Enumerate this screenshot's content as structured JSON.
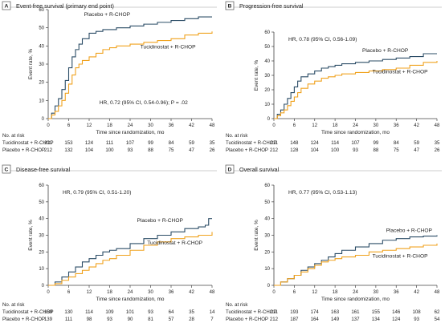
{
  "colors": {
    "placebo": "#2b4c66",
    "tucidinostat": "#f0a21e",
    "frame": "#999999",
    "axis": "#444444"
  },
  "chart_data": [
    {
      "panel": "A",
      "title": "Event-free survival (primary end point)",
      "type": "line",
      "xlabel": "Time since randomization, mo",
      "ylabel": "Event rate, %",
      "xlim": [
        0,
        48
      ],
      "ylim": [
        0,
        60
      ],
      "xticks": [
        0,
        6,
        12,
        18,
        24,
        30,
        36,
        42,
        48
      ],
      "yticks": [
        0,
        10,
        20,
        30,
        40,
        50,
        60
      ],
      "grid": false,
      "hr_text": "HR, 0.72 (95% CI, 0.54-0.96); P = .02",
      "series": [
        {
          "name": "Placebo + R-CHOP",
          "x": [
            0,
            1,
            2,
            3,
            4,
            5,
            6,
            7,
            8,
            9,
            10,
            12,
            14,
            16,
            18,
            20,
            24,
            28,
            32,
            36,
            40,
            44,
            48
          ],
          "y": [
            0,
            3,
            7,
            11,
            16,
            21,
            28,
            34,
            38,
            41,
            44,
            47,
            48,
            49,
            49,
            50,
            51,
            52,
            53,
            54,
            55,
            56,
            56
          ]
        },
        {
          "name": "Tucidinostat + R-CHOP",
          "x": [
            0,
            1,
            2,
            3,
            4,
            5,
            6,
            7,
            8,
            9,
            10,
            12,
            14,
            16,
            18,
            20,
            24,
            28,
            32,
            36,
            40,
            44,
            48
          ],
          "y": [
            0,
            2,
            4,
            7,
            10,
            14,
            19,
            24,
            28,
            30,
            32,
            34,
            36,
            38,
            39,
            40,
            41,
            42,
            43,
            44,
            46,
            47,
            48
          ]
        }
      ],
      "risk_header": "No. at risk",
      "risk_rows": [
        {
          "label": "Tucidinostat + R-CHOP",
          "values": [
            211,
            153,
            124,
            111,
            107,
            99,
            84,
            59,
            35
          ]
        },
        {
          "label": "Placebo + R-CHOP",
          "values": [
            212,
            132,
            104,
            100,
            93,
            88,
            75,
            47,
            26
          ]
        }
      ],
      "curve_labels": [
        {
          "series": 0,
          "text": "Placebo + R-CHOP",
          "x": 10.5,
          "y": 56.5
        },
        {
          "series": 1,
          "text": "Tucidinostat + R-CHOP",
          "x": 27,
          "y": 38.5
        }
      ]
    },
    {
      "panel": "B",
      "title": "Progression-free survival",
      "type": "line",
      "xlabel": "Time since randomization, mo",
      "ylabel": "Event rate, %",
      "xlim": [
        0,
        48
      ],
      "ylim": [
        0,
        60
      ],
      "xticks": [
        0,
        6,
        12,
        18,
        24,
        30,
        36,
        42,
        48
      ],
      "yticks": [
        0,
        10,
        20,
        30,
        40,
        50,
        60
      ],
      "grid": false,
      "hr_text": "HR, 0.78 (95% CI, 0.56-1.09)",
      "series": [
        {
          "name": "Placebo + R-CHOP",
          "x": [
            0,
            1,
            2,
            3,
            4,
            5,
            6,
            7,
            8,
            10,
            12,
            14,
            16,
            18,
            20,
            24,
            28,
            32,
            36,
            40,
            44,
            48
          ],
          "y": [
            0,
            3,
            6,
            10,
            14,
            18,
            22,
            26,
            29,
            31,
            33,
            35,
            36,
            37,
            38,
            39,
            40,
            41,
            42,
            43,
            45,
            45
          ]
        },
        {
          "name": "Tucidinostat + R-CHOP",
          "x": [
            0,
            1,
            2,
            3,
            4,
            5,
            6,
            7,
            8,
            10,
            12,
            14,
            16,
            18,
            20,
            24,
            28,
            32,
            36,
            40,
            44,
            48
          ],
          "y": [
            0,
            2,
            4,
            6,
            9,
            12,
            15,
            18,
            21,
            24,
            26,
            28,
            29,
            30,
            31,
            32,
            33,
            34,
            35,
            37,
            39,
            40
          ]
        }
      ],
      "risk_header": "No. at risk",
      "risk_rows": [
        {
          "label": "Tucidinostat + R-CHOP",
          "values": [
            211,
            148,
            124,
            114,
            107,
            99,
            84,
            59,
            35
          ]
        },
        {
          "label": "Placebo + R-CHOP",
          "values": [
            212,
            128,
            104,
            100,
            93,
            88,
            75,
            47,
            26
          ]
        }
      ],
      "curve_labels": [
        {
          "series": 0,
          "text": "Placebo + R-CHOP",
          "x": 26,
          "y": 46
        },
        {
          "series": 1,
          "text": "Tucidinostat + R-CHOP",
          "x": 29,
          "y": 31.5
        }
      ]
    },
    {
      "panel": "C",
      "title": "Disease-free survival",
      "type": "line",
      "xlabel": "Time since randomization, mo",
      "ylabel": "Event rate, %",
      "xlim": [
        0,
        48
      ],
      "ylim": [
        0,
        60
      ],
      "xticks": [
        0,
        6,
        12,
        18,
        24,
        30,
        36,
        42,
        48
      ],
      "yticks": [
        0,
        10,
        20,
        30,
        40,
        50,
        60
      ],
      "grid": false,
      "hr_text": "HR, 0.79 (95% CI, 0.51-1.20)",
      "series": [
        {
          "name": "Placebo + R-CHOP",
          "x": [
            0,
            2,
            4,
            6,
            8,
            10,
            12,
            14,
            16,
            18,
            20,
            24,
            28,
            32,
            36,
            40,
            44,
            46,
            47,
            48
          ],
          "y": [
            0,
            2,
            5,
            8,
            11,
            14,
            16,
            18,
            20,
            21,
            22,
            25,
            28,
            30,
            32,
            34,
            35,
            36,
            40,
            40
          ]
        },
        {
          "name": "Tucidinostat + R-CHOP",
          "x": [
            0,
            2,
            4,
            6,
            8,
            10,
            12,
            14,
            16,
            18,
            20,
            24,
            28,
            32,
            36,
            40,
            44,
            48
          ],
          "y": [
            0,
            1,
            3,
            5,
            7,
            9,
            11,
            13,
            15,
            16,
            18,
            21,
            24,
            26,
            28,
            29,
            30,
            32
          ]
        }
      ],
      "risk_header": "No. at risk",
      "risk_rows": [
        {
          "label": "Tucidinostat + R-CHOP",
          "values": [
            159,
            130,
            114,
            109,
            101,
            93,
            64,
            35,
            14
          ]
        },
        {
          "label": "Placebo + R-CHOP",
          "values": [
            139,
            111,
            98,
            93,
            90,
            81,
            57,
            28,
            7
          ]
        }
      ],
      "curve_labels": [
        {
          "series": 0,
          "text": "Placebo + R-CHOP",
          "x": 26,
          "y": 38
        },
        {
          "series": 1,
          "text": "Tucidinostat + R-CHOP",
          "x": 29,
          "y": 24.5
        }
      ]
    },
    {
      "panel": "D",
      "title": "Overall survival",
      "type": "line",
      "xlabel": "Time since randomization, mo",
      "ylabel": "Event rate, %",
      "xlim": [
        0,
        48
      ],
      "ylim": [
        0,
        60
      ],
      "xticks": [
        0,
        6,
        12,
        18,
        24,
        30,
        36,
        42,
        48
      ],
      "yticks": [
        0,
        10,
        20,
        30,
        40,
        50,
        60
      ],
      "grid": false,
      "hr_text": "HR, 0.77 (95% CI, 0.53-1.13)",
      "series": [
        {
          "name": "Placebo + R-CHOP",
          "x": [
            0,
            2,
            4,
            6,
            8,
            10,
            12,
            14,
            16,
            18,
            20,
            24,
            28,
            32,
            36,
            40,
            44,
            48
          ],
          "y": [
            0,
            2,
            4,
            6,
            9,
            11,
            13,
            15,
            17,
            19,
            21,
            23,
            25,
            27,
            28,
            29,
            29.5,
            30
          ]
        },
        {
          "name": "Tucidinostat + R-CHOP",
          "x": [
            0,
            2,
            4,
            6,
            8,
            10,
            12,
            14,
            16,
            18,
            20,
            24,
            28,
            32,
            36,
            40,
            44,
            48
          ],
          "y": [
            0,
            2,
            4,
            6,
            8,
            10,
            12,
            14,
            15,
            16,
            17,
            18,
            20,
            21,
            22,
            23,
            24,
            25
          ]
        }
      ],
      "risk_header": "No. at risk",
      "risk_rows": [
        {
          "label": "Tucidinostat + R-CHOP",
          "values": [
            211,
            193,
            174,
            163,
            161,
            155,
            146,
            108,
            62
          ]
        },
        {
          "label": "Placebo + R-CHOP",
          "values": [
            212,
            187,
            164,
            149,
            137,
            134,
            124,
            93,
            54
          ]
        }
      ],
      "curve_labels": [
        {
          "series": 0,
          "text": "Placebo + R-CHOP",
          "x": 33,
          "y": 32
        },
        {
          "series": 1,
          "text": "Tucidinostat + R-CHOP",
          "x": 29,
          "y": 16.5
        }
      ]
    }
  ]
}
